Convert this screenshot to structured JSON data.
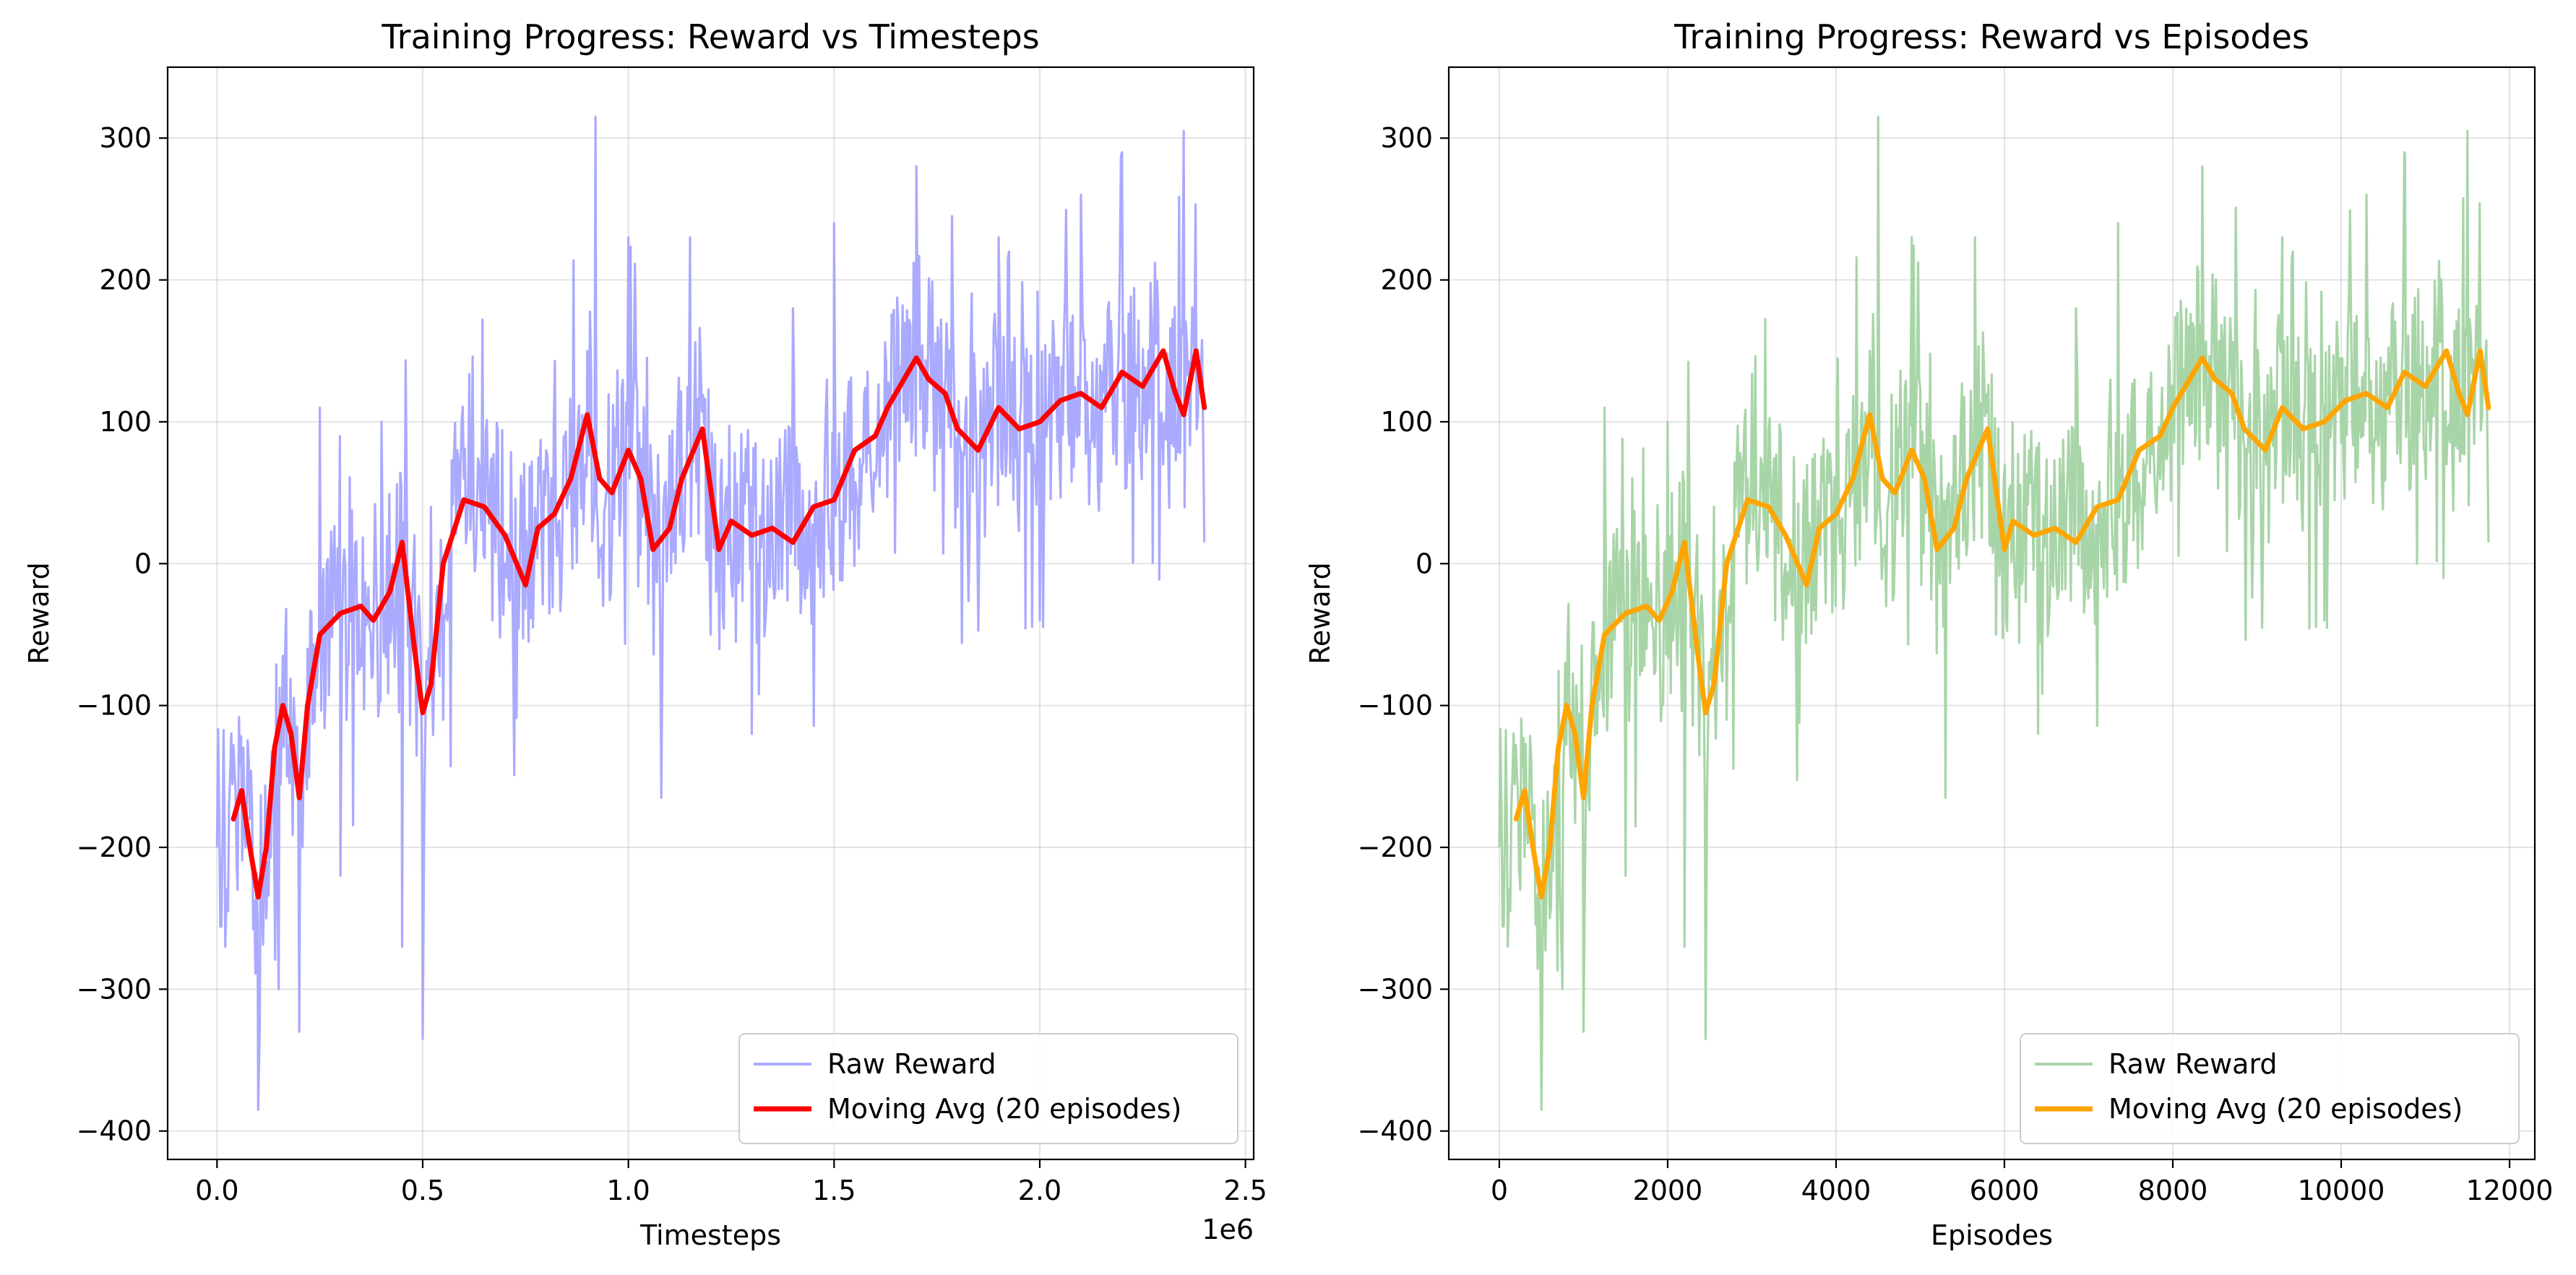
{
  "chart_data": [
    {
      "type": "line",
      "title": "Training Progress: Reward vs Timesteps",
      "xlabel": "Timesteps",
      "ylabel": "Reward",
      "x_offset_label": "1e6",
      "xlim": [
        -0.12,
        2.52
      ],
      "ylim": [
        -420,
        350
      ],
      "xticks": [
        0.0,
        0.5,
        1.0,
        1.5,
        2.0,
        2.5
      ],
      "xtick_labels": [
        "0.0",
        "0.5",
        "1.0",
        "1.5",
        "2.0",
        "2.5"
      ],
      "yticks": [
        -400,
        -300,
        -200,
        -100,
        0,
        100,
        200,
        300
      ],
      "ytick_labels": [
        "−400",
        "−300",
        "−200",
        "−100",
        "0",
        "100",
        "200",
        "300"
      ],
      "grid": true,
      "legend_position": "bottom-right",
      "series": [
        {
          "name": "Raw Reward",
          "color": "#aaaaff",
          "kind": "raw",
          "x": [
            0.0,
            0.02,
            0.05,
            0.08,
            0.1,
            0.12,
            0.15,
            0.17,
            0.2,
            0.22,
            0.25,
            0.3,
            0.35,
            0.4,
            0.45,
            0.48,
            0.5,
            0.52,
            0.55,
            0.6,
            0.7,
            0.8,
            0.9,
            0.92,
            0.95,
            1.0,
            1.08,
            1.1,
            1.15,
            1.2,
            1.3,
            1.4,
            1.5,
            1.6,
            1.7,
            1.8,
            1.9,
            2.0,
            2.1,
            2.2,
            2.3,
            2.35,
            2.4
          ],
          "y": [
            -200,
            -270,
            -230,
            -180,
            -385,
            -250,
            -300,
            -150,
            -330,
            -60,
            110,
            -220,
            -60,
            100,
            -270,
            20,
            -335,
            40,
            -110,
            60,
            0,
            80,
            150,
            315,
            50,
            230,
            -165,
            90,
            230,
            -50,
            -120,
            180,
            240,
            60,
            280,
            40,
            230,
            -40,
            260,
            290,
            70,
            305,
            15
          ],
          "note": "approximate envelope points; dense noise generated around the moving average"
        },
        {
          "name": "Moving Avg (20 episodes)",
          "color": "#ff0000",
          "kind": "avg",
          "x": [
            0.04,
            0.06,
            0.08,
            0.1,
            0.12,
            0.14,
            0.16,
            0.18,
            0.2,
            0.22,
            0.25,
            0.3,
            0.35,
            0.38,
            0.42,
            0.45,
            0.48,
            0.5,
            0.52,
            0.55,
            0.6,
            0.65,
            0.7,
            0.75,
            0.78,
            0.82,
            0.86,
            0.9,
            0.93,
            0.96,
            1.0,
            1.03,
            1.06,
            1.1,
            1.13,
            1.18,
            1.22,
            1.25,
            1.3,
            1.35,
            1.4,
            1.45,
            1.5,
            1.55,
            1.6,
            1.63,
            1.67,
            1.7,
            1.73,
            1.77,
            1.8,
            1.85,
            1.9,
            1.95,
            2.0,
            2.05,
            2.1,
            2.15,
            2.2,
            2.25,
            2.3,
            2.33,
            2.35,
            2.38,
            2.4
          ],
          "y": [
            -180,
            -160,
            -200,
            -235,
            -200,
            -130,
            -100,
            -120,
            -165,
            -100,
            -50,
            -35,
            -30,
            -40,
            -20,
            15,
            -60,
            -105,
            -85,
            0,
            45,
            40,
            20,
            -15,
            25,
            35,
            60,
            105,
            60,
            50,
            80,
            60,
            10,
            25,
            60,
            95,
            10,
            30,
            20,
            25,
            15,
            40,
            45,
            80,
            90,
            110,
            130,
            145,
            130,
            120,
            95,
            80,
            110,
            95,
            100,
            115,
            120,
            110,
            135,
            125,
            150,
            120,
            105,
            150,
            110
          ]
        }
      ]
    },
    {
      "type": "line",
      "title": "Training Progress: Reward vs Episodes",
      "xlabel": "Episodes",
      "ylabel": "Reward",
      "xlim": [
        -600,
        12300
      ],
      "ylim": [
        -420,
        350
      ],
      "xticks": [
        0,
        2000,
        4000,
        6000,
        8000,
        10000,
        12000
      ],
      "xtick_labels": [
        "0",
        "2000",
        "4000",
        "6000",
        "8000",
        "10000",
        "12000"
      ],
      "yticks": [
        -400,
        -300,
        -200,
        -100,
        0,
        100,
        200,
        300
      ],
      "ytick_labels": [
        "−400",
        "−300",
        "−200",
        "−100",
        "0",
        "100",
        "200",
        "300"
      ],
      "grid": true,
      "legend_position": "bottom-right",
      "series": [
        {
          "name": "Raw Reward",
          "color": "#a8d5a8",
          "kind": "raw",
          "x": [
            0,
            100,
            250,
            400,
            500,
            600,
            750,
            850,
            1000,
            1100,
            1250,
            1500,
            1750,
            2000,
            2200,
            2350,
            2450,
            2550,
            2700,
            2950,
            3400,
            3900,
            4400,
            4500,
            4650,
            4900,
            5300,
            5400,
            5650,
            5900,
            6400,
            6850,
            7350,
            7850,
            8350,
            8800,
            9300,
            9800,
            10300,
            10750,
            11250,
            11500,
            11750
          ],
          "y": [
            -200,
            -270,
            -230,
            -180,
            -385,
            -250,
            -300,
            -150,
            -330,
            -60,
            110,
            -220,
            -60,
            100,
            -270,
            20,
            -335,
            40,
            -110,
            60,
            0,
            80,
            150,
            315,
            50,
            230,
            -165,
            90,
            230,
            -50,
            -120,
            180,
            240,
            60,
            280,
            40,
            230,
            -40,
            260,
            290,
            70,
            305,
            15
          ],
          "note": "approximate envelope points; dense noise generated around the moving average"
        },
        {
          "name": "Moving Avg (20 episodes)",
          "color": "#ffa500",
          "kind": "avg",
          "x": [
            200,
            300,
            400,
            500,
            600,
            700,
            800,
            900,
            1000,
            1100,
            1250,
            1500,
            1750,
            1900,
            2050,
            2200,
            2350,
            2450,
            2550,
            2700,
            2950,
            3200,
            3400,
            3650,
            3800,
            4000,
            4200,
            4400,
            4550,
            4700,
            4900,
            5050,
            5200,
            5400,
            5550,
            5800,
            6000,
            6100,
            6350,
            6600,
            6850,
            7100,
            7350,
            7600,
            7850,
            8000,
            8200,
            8350,
            8500,
            8700,
            8850,
            9100,
            9300,
            9550,
            9800,
            10050,
            10300,
            10550,
            10750,
            11000,
            11250,
            11400,
            11500,
            11650,
            11750
          ],
          "y": [
            -180,
            -160,
            -200,
            -235,
            -200,
            -130,
            -100,
            -120,
            -165,
            -100,
            -50,
            -35,
            -30,
            -40,
            -20,
            15,
            -60,
            -105,
            -85,
            0,
            45,
            40,
            20,
            -15,
            25,
            35,
            60,
            105,
            60,
            50,
            80,
            60,
            10,
            25,
            60,
            95,
            10,
            30,
            20,
            25,
            15,
            40,
            45,
            80,
            90,
            110,
            130,
            145,
            130,
            120,
            95,
            80,
            110,
            95,
            100,
            115,
            120,
            110,
            135,
            125,
            150,
            120,
            105,
            150,
            110
          ]
        }
      ]
    }
  ]
}
